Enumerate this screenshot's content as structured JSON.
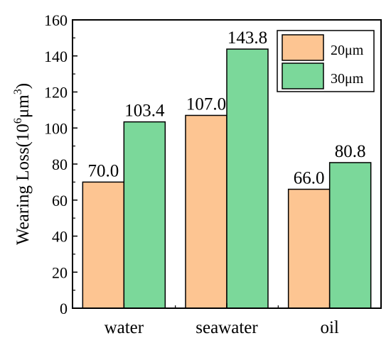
{
  "chart_data": {
    "type": "bar",
    "categories": [
      "water",
      "seawater",
      "oil"
    ],
    "series": [
      {
        "name": "20μm",
        "values": [
          70.0,
          107.0,
          66.0
        ],
        "color": "#FDC592"
      },
      {
        "name": "30μm",
        "values": [
          103.4,
          143.8,
          80.8
        ],
        "color": "#7BD89A"
      }
    ],
    "data_labels": [
      [
        "70.0",
        "107.0",
        "66.0"
      ],
      [
        "103.4",
        "143.8",
        "80.8"
      ]
    ],
    "ylabel": "Wearing Loss(10⁶μm³)",
    "ylabel_parts": {
      "main": "Wearing Loss(10",
      "exp1": "6",
      "unit": "μm",
      "exp2": "3",
      "close": ")"
    },
    "xlabel": "",
    "ylim": [
      0,
      160
    ],
    "yticks": [
      0,
      20,
      40,
      60,
      80,
      100,
      120,
      140,
      160
    ],
    "grid": false,
    "legend_position": "top-right"
  }
}
